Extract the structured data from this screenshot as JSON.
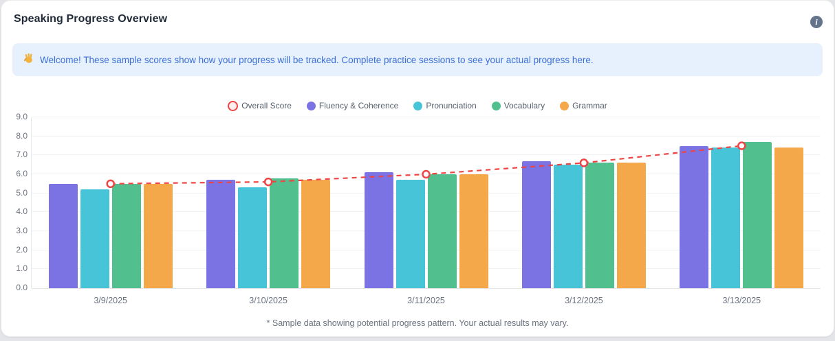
{
  "header": {
    "title": "Speaking Progress Overview"
  },
  "banner": {
    "emoji": "👋",
    "text": "Welcome! These sample scores show how your progress will be tracked. Complete practice sessions to see your actual progress here.",
    "text_color": "#3b6fd8",
    "background_color": "#e7f1fd"
  },
  "chart_data": {
    "type": "bar",
    "title": "",
    "xlabel": "",
    "ylabel": "",
    "categories": [
      "3/9/2025",
      "3/10/2025",
      "3/11/2025",
      "3/12/2025",
      "3/13/2025"
    ],
    "series": [
      {
        "name": "Overall Score",
        "type": "line",
        "style": "dashed",
        "color": "#ef4444",
        "values": [
          5.5,
          5.6,
          6.0,
          6.6,
          7.5
        ]
      },
      {
        "name": "Fluency & Coherence",
        "type": "bar",
        "color": "#7b72e3",
        "values": [
          5.5,
          5.7,
          6.1,
          6.7,
          7.5
        ]
      },
      {
        "name": "Pronunciation",
        "type": "bar",
        "color": "#48c4d8",
        "values": [
          5.2,
          5.3,
          5.7,
          6.5,
          7.4
        ]
      },
      {
        "name": "Vocabulary",
        "type": "bar",
        "color": "#52c08e",
        "values": [
          5.5,
          5.8,
          6.0,
          6.6,
          7.7
        ]
      },
      {
        "name": "Grammar",
        "type": "bar",
        "color": "#f5a84a",
        "values": [
          5.5,
          5.7,
          6.0,
          6.6,
          7.4
        ]
      }
    ],
    "ylim": [
      0,
      9
    ],
    "ytick_step": 1,
    "grid": true,
    "legend_position": "top"
  },
  "footer": {
    "note": "* Sample data showing potential progress pattern. Your actual results may vary."
  }
}
